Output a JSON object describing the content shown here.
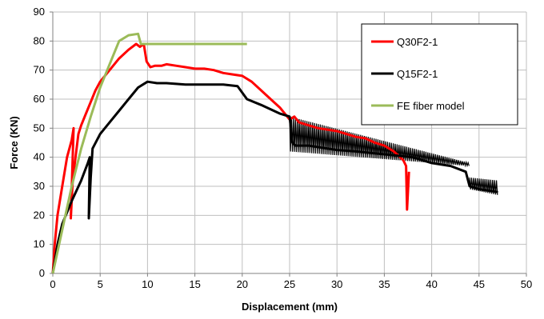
{
  "chart_data": {
    "type": "line",
    "title": "",
    "xlabel": "Displacement (mm)",
    "ylabel": "Force (KN)",
    "xlim": [
      0,
      50
    ],
    "ylim": [
      0,
      90
    ],
    "x_ticks": [
      "0",
      "5",
      "10",
      "15",
      "20",
      "25",
      "30",
      "35",
      "40",
      "45",
      "50"
    ],
    "y_ticks": [
      "0",
      "10",
      "20",
      "30",
      "40",
      "50",
      "60",
      "70",
      "80",
      "90"
    ],
    "grid": true,
    "legend_position": "top-right",
    "series": [
      {
        "name": "Q30F2-1",
        "color": "#ff0000",
        "x": [
          0,
          0.2,
          0.5,
          1,
          1.5,
          2,
          2.2,
          1.9,
          2.1,
          2.4,
          2.7,
          3,
          3.5,
          4,
          4.5,
          5,
          5.5,
          6,
          7,
          8,
          8.8,
          9.2,
          9.6,
          9.9,
          10.3,
          10.8,
          11.5,
          12,
          13,
          14,
          15,
          16,
          17,
          18,
          19,
          20,
          21,
          22,
          23,
          24,
          25,
          25.5,
          26,
          27,
          28,
          29,
          30,
          31,
          32,
          33,
          34,
          35,
          36,
          37,
          37.3,
          37.4,
          37.6
        ],
        "y": [
          0,
          10,
          20,
          30,
          40,
          46,
          50,
          19,
          32,
          40,
          48,
          51,
          55,
          59,
          63,
          66,
          68,
          70,
          74,
          77,
          79,
          78,
          79,
          73,
          71,
          71.5,
          71.5,
          72,
          71.5,
          71,
          70.5,
          70.5,
          70,
          69,
          68.5,
          68,
          66,
          63,
          60,
          57,
          53,
          54,
          52,
          51,
          50,
          49.5,
          49,
          48,
          47,
          46.5,
          45,
          44,
          42,
          39,
          37,
          22,
          35
        ]
      },
      {
        "name": "Q15F2-1",
        "color": "#000000",
        "x": [
          0,
          0.5,
          1,
          2,
          3,
          3.7,
          3.9,
          3.8,
          4.0,
          4.2,
          5,
          6,
          7,
          8,
          9,
          9.5,
          10,
          11,
          12,
          14,
          16,
          18,
          19.5,
          20.5,
          22,
          24,
          25,
          25.3,
          25.6,
          27,
          30,
          32,
          35,
          38,
          40,
          42,
          43.6,
          44,
          45,
          46,
          47
        ],
        "y": [
          0,
          10,
          17,
          25,
          32,
          38,
          40,
          19,
          33,
          43,
          48,
          52,
          56,
          60,
          64,
          65,
          66,
          65.5,
          65.5,
          65,
          65,
          65,
          64.5,
          60,
          58,
          55,
          54,
          45,
          44,
          44,
          42.5,
          42,
          41,
          40,
          38,
          37,
          35,
          30,
          29,
          28.5,
          28
        ]
      },
      {
        "name": "FE fiber model",
        "color": "#9bbb59",
        "x": [
          0,
          1,
          2,
          3,
          4,
          5,
          6,
          7,
          8,
          9,
          9.3,
          9.6,
          10,
          12,
          14,
          16,
          18,
          20,
          20.5
        ],
        "y": [
          0,
          15,
          30,
          43,
          54,
          64,
          72,
          80,
          82,
          82.5,
          79,
          79,
          79,
          79,
          79,
          79,
          79,
          79,
          79
        ]
      }
    ],
    "oscillation_bands": [
      {
        "series": "Q15F2-1",
        "from_x": 25,
        "to_x": 44,
        "from_upper": 54,
        "to_upper": 38,
        "from_lower": 42,
        "to_lower": 37
      },
      {
        "series": "Q15F2-1",
        "from_x": 44,
        "to_x": 47,
        "from_upper": 33,
        "to_upper": 32,
        "from_lower": 29,
        "to_lower": 27
      }
    ]
  }
}
